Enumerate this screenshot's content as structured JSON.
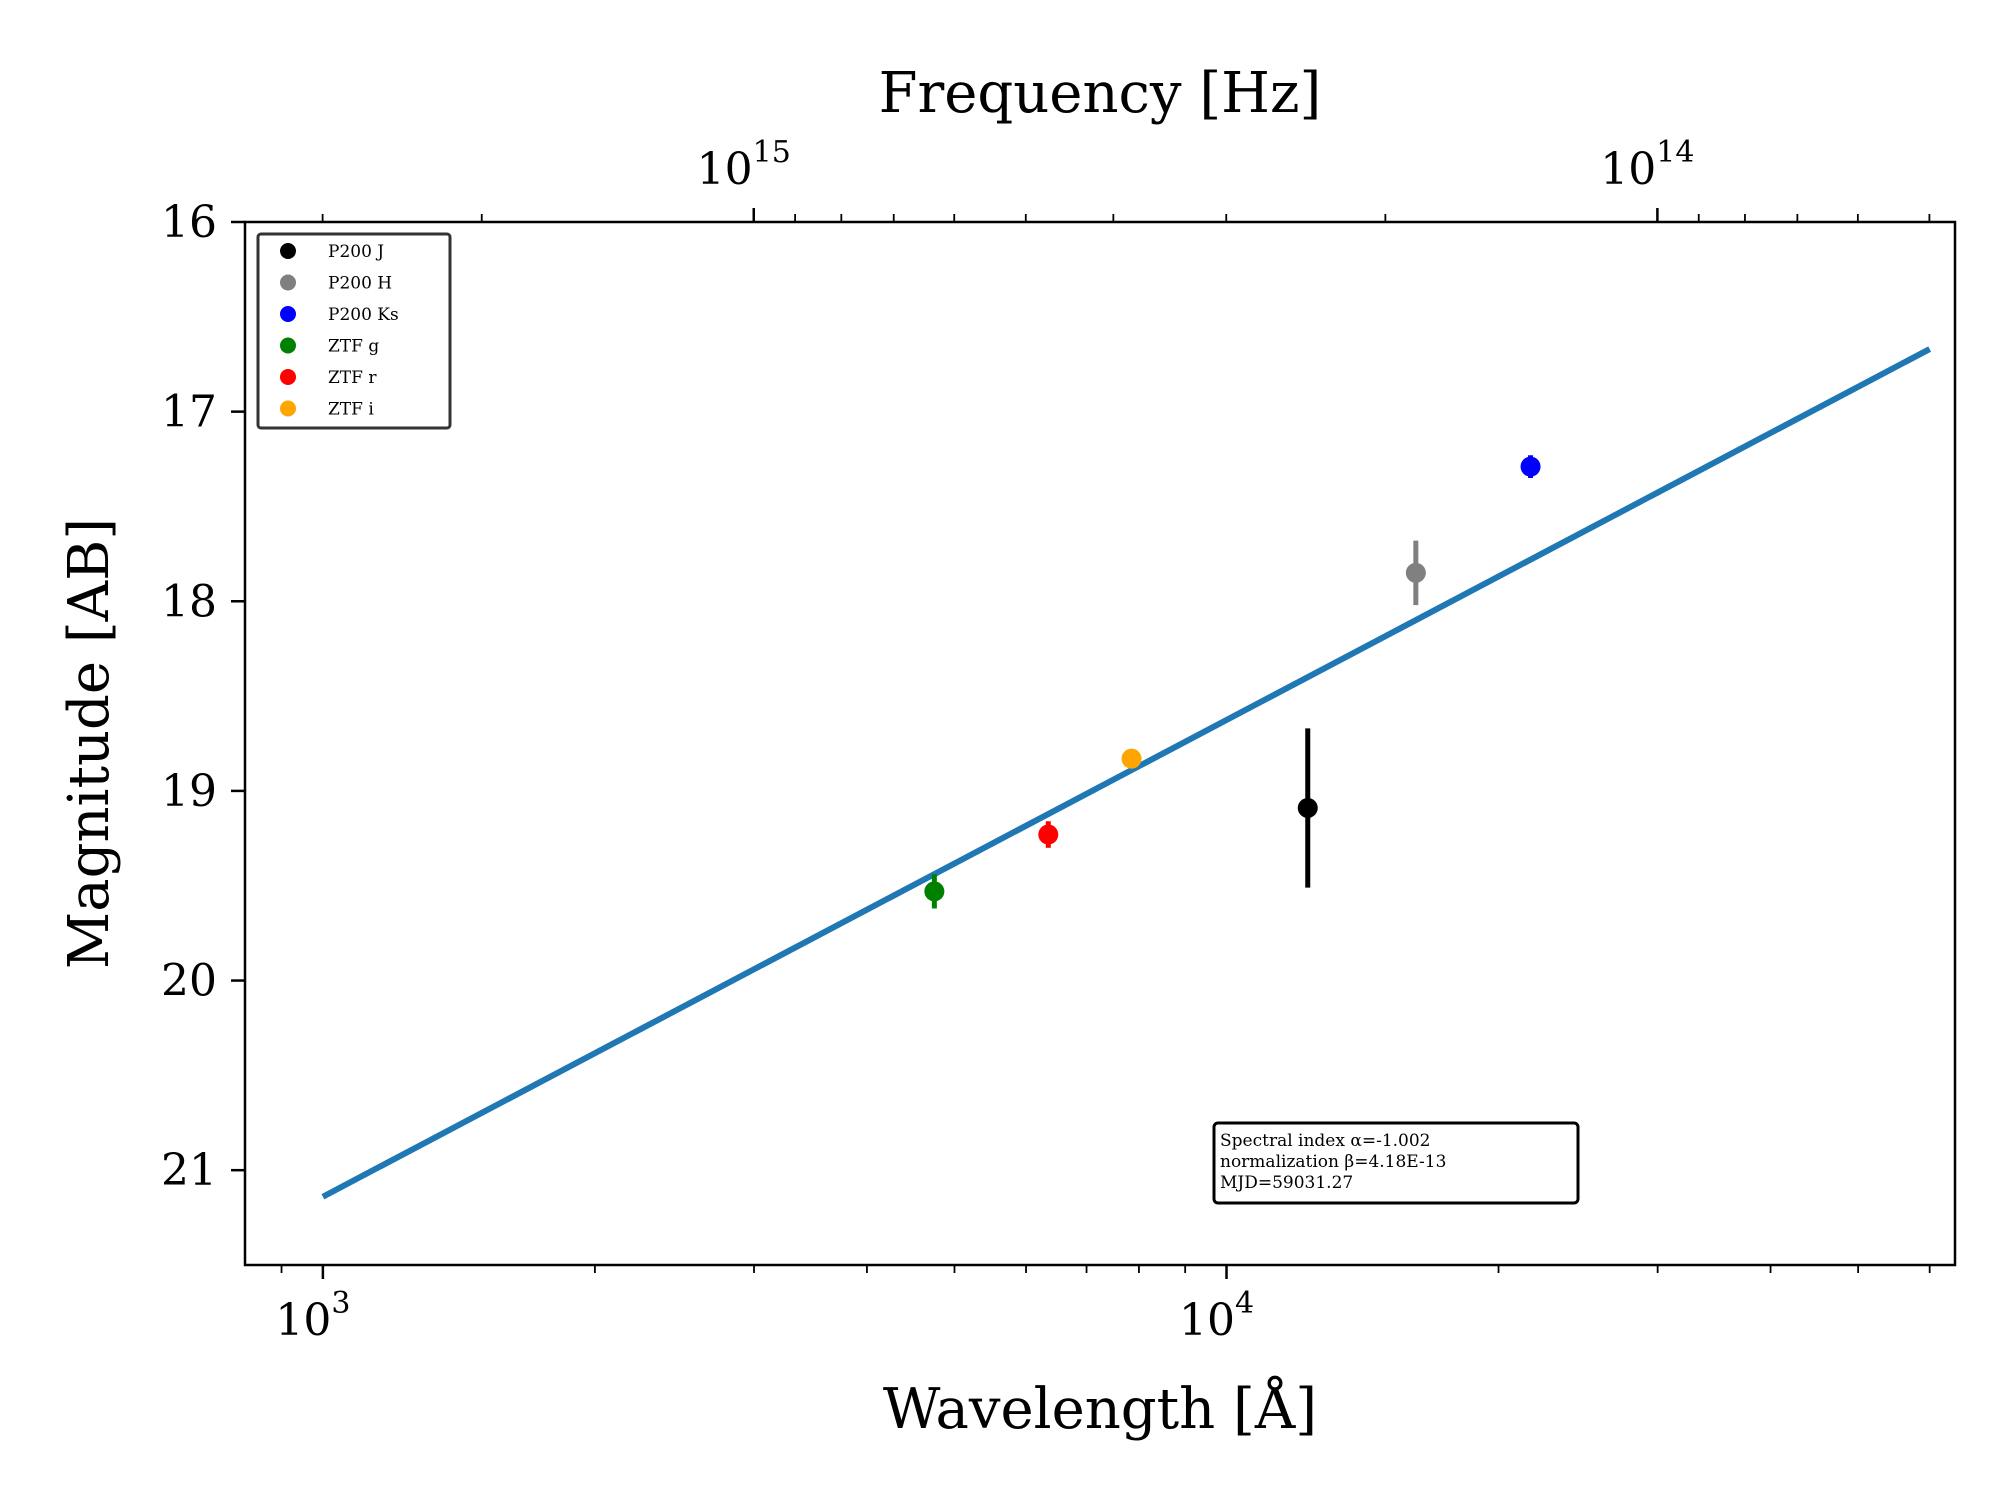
{
  "chart_data": {
    "type": "scatter",
    "xlabel": "Wavelength [Å]",
    "ylabel": "Magnitude [AB]",
    "top_xlabel": "Frequency [Hz]",
    "x_scale": "log",
    "top_x_scale": "log",
    "xlim": [
      820,
      64000
    ],
    "ylim": [
      21.5,
      16
    ],
    "y_inverted": true,
    "grid": false,
    "legend_position": "top-left",
    "x_ticks": [
      {
        "value": 1000,
        "base": "10",
        "exp": "3"
      },
      {
        "value": 10000,
        "base": "10",
        "exp": "4"
      }
    ],
    "top_x_ticks": [
      {
        "value": 1000000000000000.0,
        "base": "10",
        "exp": "15"
      },
      {
        "value": 100000000000000.0,
        "base": "10",
        "exp": "14"
      }
    ],
    "y_ticks": [
      16,
      17,
      18,
      19,
      20,
      21
    ],
    "series": [
      {
        "name": "P200 J",
        "color": "#000000",
        "points": [
          {
            "x": 12300,
            "y": 19.09,
            "yerr": 0.42
          }
        ]
      },
      {
        "name": "P200 H",
        "color": "#808080",
        "points": [
          {
            "x": 16200,
            "y": 17.85,
            "yerr": 0.17
          }
        ]
      },
      {
        "name": "P200 Ks",
        "color": "#0000ff",
        "points": [
          {
            "x": 21700,
            "y": 17.29,
            "yerr": 0.06
          }
        ]
      },
      {
        "name": "ZTF g",
        "color": "#008000",
        "points": [
          {
            "x": 4750,
            "y": 19.53,
            "yerr": 0.09
          }
        ]
      },
      {
        "name": "ZTF r",
        "color": "#ff0000",
        "points": [
          {
            "x": 6350,
            "y": 19.23,
            "yerr": 0.07
          }
        ]
      },
      {
        "name": "ZTF i",
        "color": "#ffa500",
        "points": [
          {
            "x": 7850,
            "y": 18.83,
            "yerr": 0.03
          }
        ]
      }
    ],
    "fit_line": {
      "color": "#1f77b4",
      "points": [
        {
          "x": 1000,
          "y": 21.14
        },
        {
          "x": 60000,
          "y": 16.67
        }
      ]
    },
    "annotation": {
      "lines": [
        "Spectral index α=-1.002",
        "normalization β=4.18E-13",
        "MJD=59031.27"
      ]
    }
  }
}
